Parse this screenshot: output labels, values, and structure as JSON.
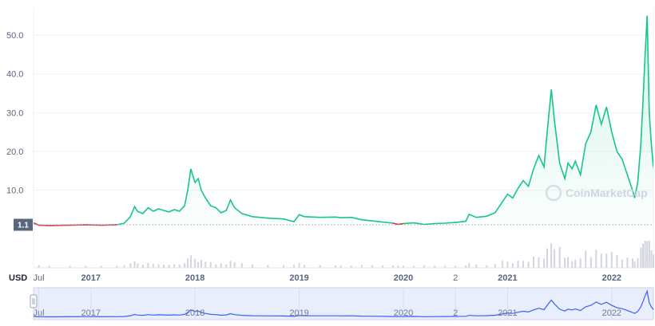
{
  "chart_data": {
    "type": "line",
    "currency": "USD",
    "start_price": 1.1,
    "watermark": "CoinMarketCap",
    "y_ticks": [
      "10.0",
      "20.0",
      "30.0",
      "40.0",
      "50.0"
    ],
    "y_tick_values": [
      10,
      20,
      30,
      40,
      50
    ],
    "ylim": [
      -10,
      57
    ],
    "x_ticks": [
      {
        "label": "Jul",
        "t": 2016.5,
        "major": false
      },
      {
        "label": "2017",
        "t": 2017.0,
        "major": true
      },
      {
        "label": "2018",
        "t": 2018.0,
        "major": true
      },
      {
        "label": "2019",
        "t": 2019.0,
        "major": true
      },
      {
        "label": "2020",
        "t": 2020.0,
        "major": true
      },
      {
        "label": "2",
        "t": 2020.5,
        "major": false
      },
      {
        "label": "2021",
        "t": 2021.0,
        "major": true
      },
      {
        "label": "2022",
        "t": 2022.0,
        "major": true
      }
    ],
    "xlim": [
      2016.45,
      2022.4
    ],
    "grid": true,
    "series": [
      {
        "points": [
          [
            2016.45,
            1.6
          ],
          [
            2016.5,
            1.0
          ],
          [
            2016.6,
            0.9
          ],
          [
            2016.8,
            1.0
          ],
          [
            2016.95,
            1.1
          ],
          [
            2017.1,
            1.0
          ],
          [
            2017.25,
            1.1
          ],
          [
            2017.32,
            1.5
          ],
          [
            2017.38,
            3.2
          ],
          [
            2017.42,
            5.8
          ],
          [
            2017.45,
            4.5
          ],
          [
            2017.5,
            4.0
          ],
          [
            2017.55,
            5.5
          ],
          [
            2017.6,
            4.6
          ],
          [
            2017.65,
            5.2
          ],
          [
            2017.7,
            4.8
          ],
          [
            2017.75,
            4.4
          ],
          [
            2017.8,
            5.0
          ],
          [
            2017.85,
            4.6
          ],
          [
            2017.9,
            6.0
          ],
          [
            2017.93,
            10.0
          ],
          [
            2017.96,
            15.5
          ],
          [
            2018.0,
            12.0
          ],
          [
            2018.03,
            13.0
          ],
          [
            2018.06,
            10.0
          ],
          [
            2018.1,
            8.0
          ],
          [
            2018.15,
            6.0
          ],
          [
            2018.2,
            5.5
          ],
          [
            2018.25,
            4.2
          ],
          [
            2018.3,
            4.8
          ],
          [
            2018.34,
            7.5
          ],
          [
            2018.38,
            5.5
          ],
          [
            2018.45,
            4.0
          ],
          [
            2018.55,
            3.2
          ],
          [
            2018.7,
            2.8
          ],
          [
            2018.85,
            2.6
          ],
          [
            2018.95,
            1.9
          ],
          [
            2019.0,
            3.7
          ],
          [
            2019.05,
            3.2
          ],
          [
            2019.2,
            3.0
          ],
          [
            2019.35,
            3.1
          ],
          [
            2019.4,
            2.9
          ],
          [
            2019.5,
            3.0
          ],
          [
            2019.6,
            2.4
          ],
          [
            2019.7,
            2.1
          ],
          [
            2019.8,
            1.8
          ],
          [
            2019.9,
            1.5
          ],
          [
            2019.95,
            1.2
          ],
          [
            2020.0,
            1.4
          ],
          [
            2020.1,
            1.6
          ],
          [
            2020.2,
            1.2
          ],
          [
            2020.3,
            1.4
          ],
          [
            2020.4,
            1.5
          ],
          [
            2020.5,
            1.7
          ],
          [
            2020.6,
            2.0
          ],
          [
            2020.63,
            3.8
          ],
          [
            2020.7,
            3.0
          ],
          [
            2020.8,
            3.3
          ],
          [
            2020.88,
            4.2
          ],
          [
            2020.95,
            7.0
          ],
          [
            2021.0,
            9.0
          ],
          [
            2021.05,
            8.0
          ],
          [
            2021.1,
            10.5
          ],
          [
            2021.15,
            12.5
          ],
          [
            2021.2,
            11.0
          ],
          [
            2021.25,
            15.5
          ],
          [
            2021.3,
            19.0
          ],
          [
            2021.35,
            16.0
          ],
          [
            2021.38,
            25.0
          ],
          [
            2021.42,
            36.0
          ],
          [
            2021.45,
            28.0
          ],
          [
            2021.5,
            17.0
          ],
          [
            2021.55,
            13.0
          ],
          [
            2021.58,
            17.0
          ],
          [
            2021.62,
            15.5
          ],
          [
            2021.65,
            17.5
          ],
          [
            2021.7,
            14.0
          ],
          [
            2021.75,
            22.0
          ],
          [
            2021.8,
            25.0
          ],
          [
            2021.85,
            32.0
          ],
          [
            2021.9,
            27.0
          ],
          [
            2021.95,
            31.5
          ],
          [
            2022.0,
            25.0
          ],
          [
            2022.05,
            20.0
          ],
          [
            2022.1,
            18.0
          ],
          [
            2022.15,
            14.0
          ],
          [
            2022.2,
            10.0
          ],
          [
            2022.22,
            8.0
          ],
          [
            2022.25,
            12.0
          ],
          [
            2022.28,
            22.0
          ],
          [
            2022.3,
            33.0
          ],
          [
            2022.32,
            45.0
          ],
          [
            2022.34,
            55.0
          ],
          [
            2022.36,
            30.0
          ],
          [
            2022.38,
            22.0
          ],
          [
            2022.4,
            16.0
          ]
        ]
      }
    ],
    "colors": {
      "up": "#16c784",
      "down": "#ea3943",
      "navigator": "#3861fb"
    }
  }
}
